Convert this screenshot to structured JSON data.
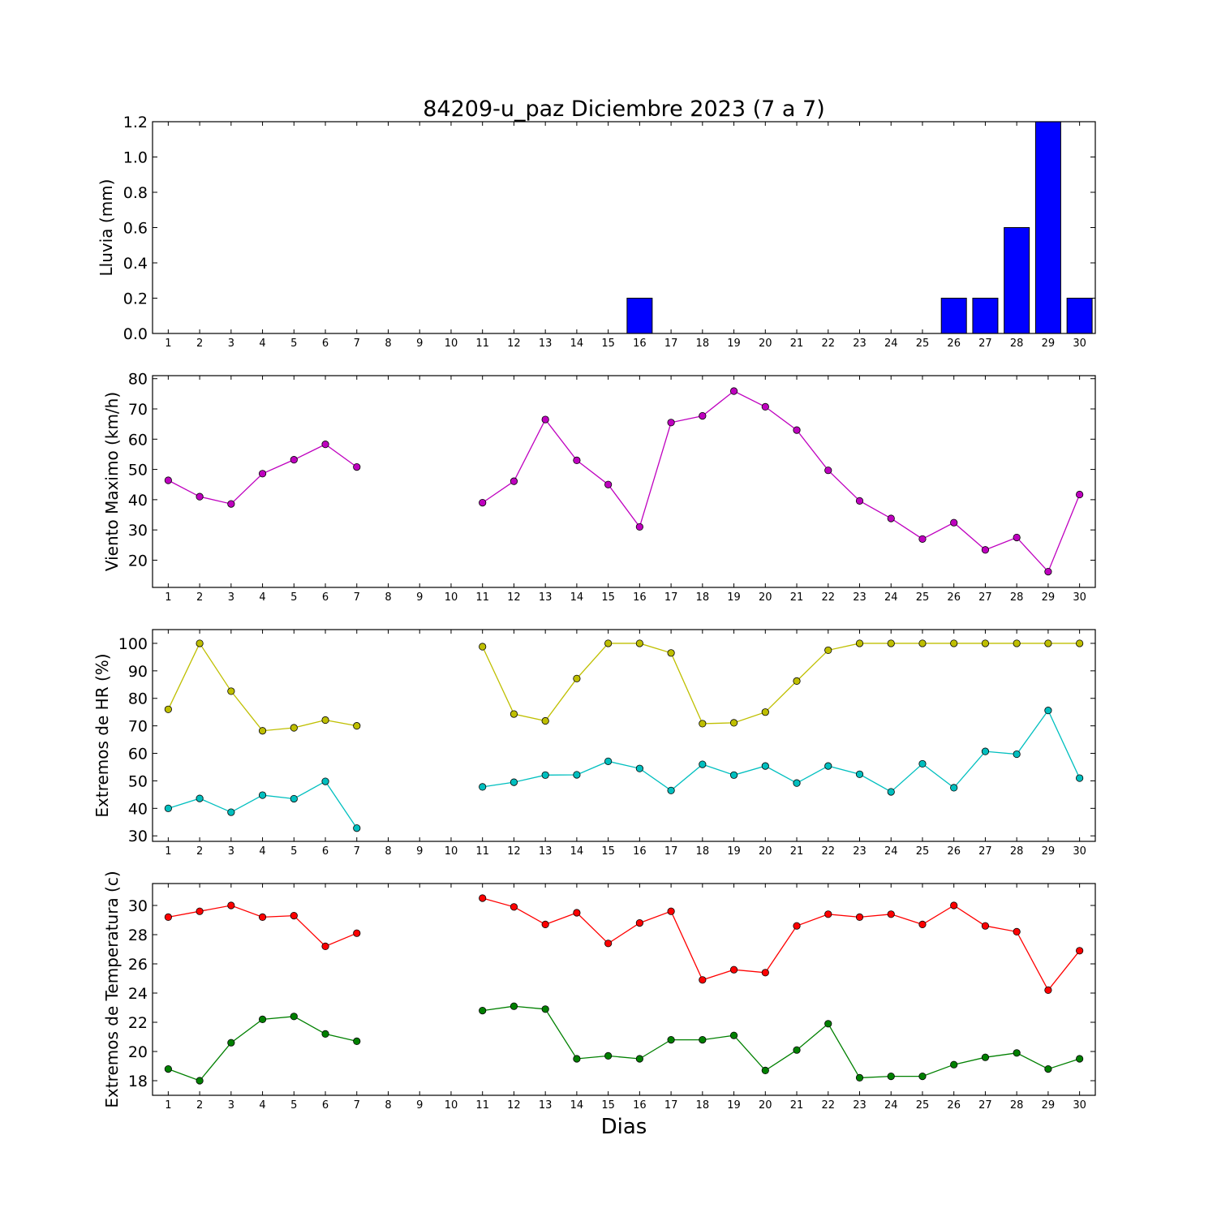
{
  "title": "84209-u_paz Diciembre 2023  (7 a 7)",
  "xlabel": "Dias",
  "chart_data": [
    {
      "type": "bar",
      "ylabel": "Lluvia (mm)",
      "ylim": [
        0,
        1.2
      ],
      "yticks": [
        "0.0",
        "0.2",
        "0.4",
        "0.6",
        "0.8",
        "1.0",
        "1.2"
      ],
      "x": [
        1,
        2,
        3,
        4,
        5,
        6,
        7,
        8,
        9,
        10,
        11,
        12,
        13,
        14,
        15,
        16,
        17,
        18,
        19,
        20,
        21,
        22,
        23,
        24,
        25,
        26,
        27,
        28,
        29,
        30
      ],
      "values": [
        0,
        0,
        0,
        0,
        0,
        0,
        0,
        0,
        0,
        0,
        0,
        0,
        0,
        0,
        0,
        0.2,
        0,
        0,
        0,
        0,
        0,
        0,
        0,
        0,
        0,
        0.2,
        0.2,
        0.6,
        1.2,
        0.2
      ],
      "color": "#0000ff"
    },
    {
      "type": "line",
      "ylabel": "Viento Maximo (km/h)",
      "ylim": [
        11,
        81
      ],
      "yticks": [
        "20",
        "30",
        "40",
        "50",
        "60",
        "70",
        "80"
      ],
      "x": [
        1,
        2,
        3,
        4,
        5,
        6,
        7,
        8,
        9,
        10,
        11,
        12,
        13,
        14,
        15,
        16,
        17,
        18,
        19,
        20,
        21,
        22,
        23,
        24,
        25,
        26,
        27,
        28,
        29,
        30
      ],
      "series": [
        {
          "color": "#bf00bf",
          "values": [
            46.4,
            41.0,
            38.6,
            48.6,
            53.2,
            58.3,
            50.8,
            null,
            null,
            null,
            39.0,
            46.1,
            66.5,
            53.0,
            45.0,
            31.0,
            65.5,
            67.7,
            75.9,
            70.7,
            63.0,
            49.7,
            39.6,
            33.8,
            27.0,
            32.4,
            23.4,
            27.5,
            16.2,
            41.7
          ]
        }
      ]
    },
    {
      "type": "line",
      "ylabel": "Extremos de HR (%)",
      "ylim": [
        28,
        105
      ],
      "yticks": [
        "30",
        "40",
        "50",
        "60",
        "70",
        "80",
        "90",
        "100"
      ],
      "x": [
        1,
        2,
        3,
        4,
        5,
        6,
        7,
        8,
        9,
        10,
        11,
        12,
        13,
        14,
        15,
        16,
        17,
        18,
        19,
        20,
        21,
        22,
        23,
        24,
        25,
        26,
        27,
        28,
        29,
        30
      ],
      "series": [
        {
          "color": "#bfbf00",
          "values": [
            76,
            100,
            82.6,
            68.2,
            69.3,
            72.1,
            70.0,
            null,
            null,
            null,
            98.8,
            74.3,
            71.8,
            87.2,
            100,
            100,
            96.5,
            70.8,
            71.1,
            75,
            86.3,
            97.5,
            100,
            100,
            100,
            100,
            100,
            100,
            100,
            100
          ]
        },
        {
          "color": "#00bfbf",
          "values": [
            40,
            43.6,
            38.6,
            44.8,
            43.5,
            49.8,
            32.8,
            null,
            null,
            null,
            47.8,
            49.5,
            52.1,
            52.2,
            57.1,
            54.5,
            46.5,
            56.0,
            52.1,
            55.4,
            49.2,
            55.4,
            52.4,
            46.0,
            56.2,
            47.5,
            60.7,
            59.7,
            75.6,
            51.0
          ]
        }
      ]
    },
    {
      "type": "line",
      "ylabel": "Extremos de Temperatura (c)",
      "ylim": [
        17,
        31.5
      ],
      "yticks": [
        "18",
        "20",
        "22",
        "24",
        "26",
        "28",
        "30"
      ],
      "x": [
        1,
        2,
        3,
        4,
        5,
        6,
        7,
        8,
        9,
        10,
        11,
        12,
        13,
        14,
        15,
        16,
        17,
        18,
        19,
        20,
        21,
        22,
        23,
        24,
        25,
        26,
        27,
        28,
        29,
        30
      ],
      "series": [
        {
          "color": "#ff0000",
          "values": [
            29.2,
            29.6,
            30.0,
            29.2,
            29.3,
            27.2,
            28.1,
            null,
            null,
            null,
            30.5,
            29.9,
            28.7,
            29.5,
            27.4,
            28.8,
            29.6,
            24.9,
            25.6,
            25.4,
            28.6,
            29.4,
            29.2,
            29.4,
            28.7,
            30.0,
            28.6,
            28.2,
            24.2,
            26.9
          ]
        },
        {
          "color": "#008000",
          "values": [
            18.8,
            18.0,
            20.6,
            22.2,
            22.4,
            21.2,
            20.7,
            null,
            null,
            null,
            22.8,
            23.1,
            22.9,
            19.5,
            19.7,
            19.5,
            20.8,
            20.8,
            21.1,
            18.7,
            20.1,
            21.9,
            18.2,
            18.3,
            18.3,
            19.1,
            19.6,
            19.9,
            18.8,
            19.5
          ]
        }
      ]
    }
  ]
}
